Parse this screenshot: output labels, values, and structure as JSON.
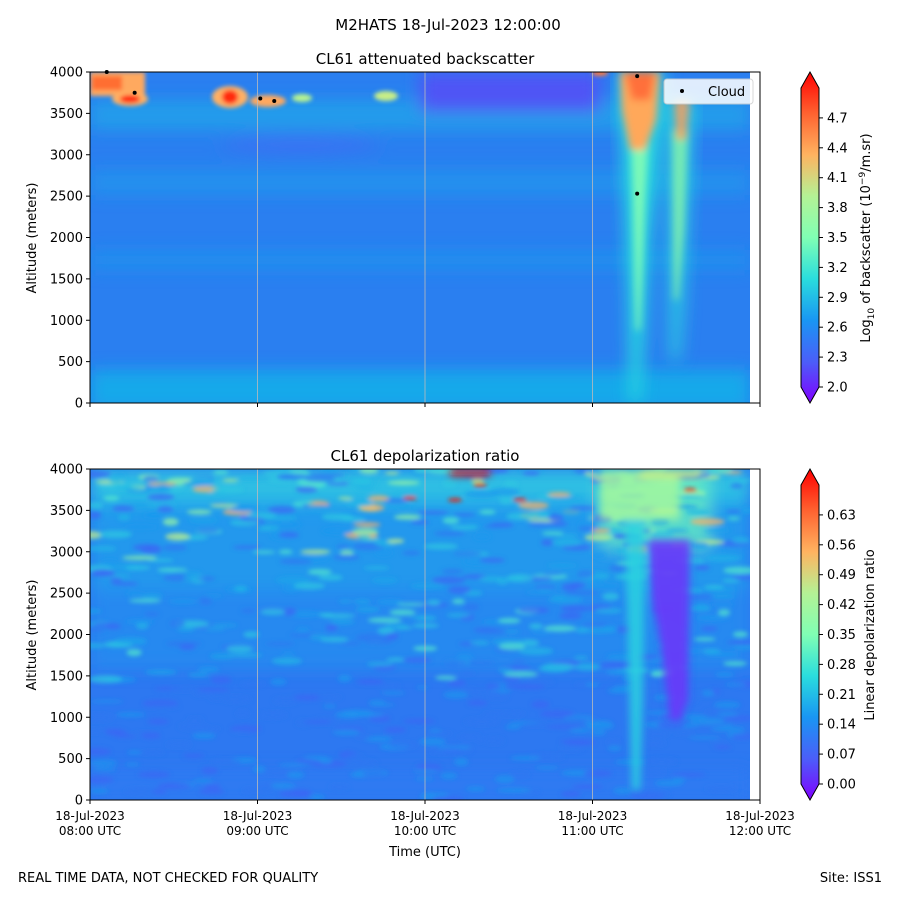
{
  "figure": {
    "title": "M2HATS 18-Jul-2023 12:00:00",
    "footer_left": "REAL TIME DATA, NOT CHECKED FOR QUALITY",
    "footer_right": "Site: ISS1"
  },
  "chart_data": [
    {
      "type": "heatmap",
      "title": "CL61 attenuated backscatter",
      "ylabel": "Altitude (meters)",
      "xlabel": "",
      "ylim": [
        0,
        4000
      ],
      "yticks": [
        "0",
        "500",
        "1000",
        "1500",
        "2000",
        "2500",
        "3000",
        "3500",
        "4000"
      ],
      "xticks": [],
      "colorbar": {
        "label_prefix": "Log",
        "label_sub": "10",
        "label_mid": " of backscatter (10",
        "label_sup": "−9",
        "label_suffix": "/m.sr)",
        "min": 2.0,
        "max": 5.0,
        "ticks": [
          "2.0",
          "2.3",
          "2.6",
          "2.9",
          "3.2",
          "3.5",
          "3.8",
          "4.1",
          "4.4",
          "4.7"
        ]
      },
      "legend": {
        "label": "Cloud",
        "placement": "upper-right"
      },
      "clouds": [
        {
          "time": "08:06",
          "altitude": 4000
        },
        {
          "time": "08:16",
          "altitude": 3750
        },
        {
          "time": "09:01",
          "altitude": 3680
        },
        {
          "time": "09:06",
          "altitude": 3650
        },
        {
          "time": "11:16",
          "altitude": 3950
        },
        {
          "time": "11:16",
          "altitude": 2530
        }
      ]
    },
    {
      "type": "heatmap",
      "title": "CL61 depolarization ratio",
      "ylabel": "Altitude (meters)",
      "xlabel": "Time (UTC)",
      "ylim": [
        0,
        4000
      ],
      "yticks": [
        "0",
        "500",
        "1000",
        "1500",
        "2000",
        "2500",
        "3000",
        "3500",
        "4000"
      ],
      "xticks": [
        {
          "date": "18-Jul-2023",
          "time": "08:00 UTC"
        },
        {
          "date": "18-Jul-2023",
          "time": "09:00 UTC"
        },
        {
          "date": "18-Jul-2023",
          "time": "10:00 UTC"
        },
        {
          "date": "18-Jul-2023",
          "time": "11:00 UTC"
        },
        {
          "date": "18-Jul-2023",
          "time": "12:00 UTC"
        }
      ],
      "colorbar": {
        "label": "Linear depolarization ratio",
        "min": 0.0,
        "max": 0.7,
        "ticks": [
          "0.00",
          "0.07",
          "0.14",
          "0.21",
          "0.28",
          "0.35",
          "0.42",
          "0.49",
          "0.56",
          "0.63"
        ]
      }
    }
  ]
}
